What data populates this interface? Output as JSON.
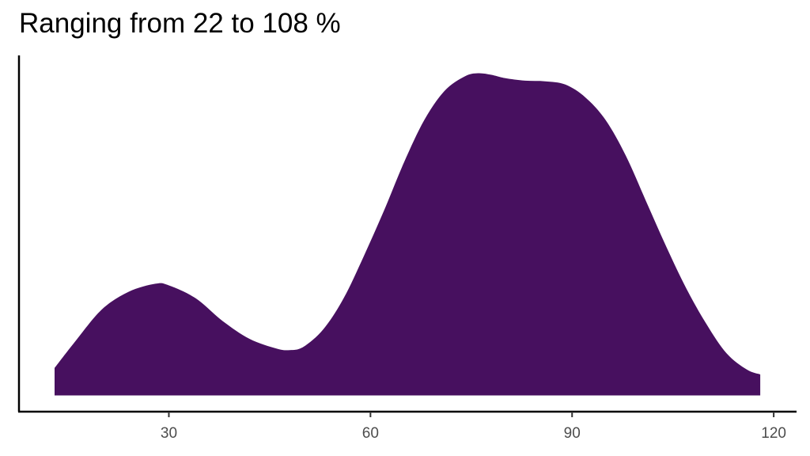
{
  "chart_data": {
    "type": "area",
    "title": "Ranging from 22 to 108 %",
    "xlabel": "",
    "ylabel": "",
    "xlim": [
      7.7,
      123.4
    ],
    "ylim": [
      -0.05,
      1.05
    ],
    "x_ticks": [
      30,
      60,
      90,
      120
    ],
    "y_axis_ticks_shown": false,
    "grid": false,
    "fill_color": "#47105F",
    "series": [
      {
        "x": [
          13,
          16,
          20,
          24,
          28,
          30,
          34,
          38,
          42,
          46,
          48,
          50,
          53,
          56,
          59,
          62,
          65,
          68,
          71,
          74,
          76,
          78,
          80,
          83,
          86,
          89,
          92,
          95,
          98,
          101,
          104,
          107,
          110,
          113,
          116,
          118
        ],
        "y": [
          0.085,
          0.165,
          0.265,
          0.32,
          0.345,
          0.34,
          0.3,
          0.23,
          0.175,
          0.145,
          0.14,
          0.15,
          0.205,
          0.3,
          0.43,
          0.57,
          0.72,
          0.85,
          0.94,
          0.985,
          0.995,
          0.99,
          0.98,
          0.972,
          0.97,
          0.96,
          0.92,
          0.85,
          0.74,
          0.6,
          0.46,
          0.33,
          0.22,
          0.13,
          0.08,
          0.065
        ]
      }
    ]
  }
}
